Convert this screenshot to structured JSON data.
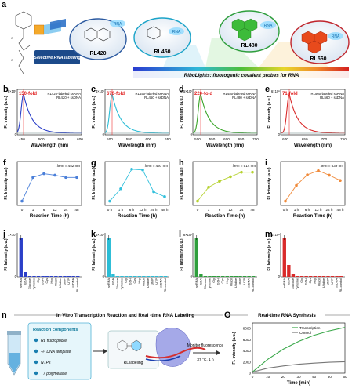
{
  "figure": {
    "panel_letters": [
      "a",
      "b",
      "c",
      "d",
      "e",
      "f",
      "g",
      "h",
      "i",
      "j",
      "k",
      "l",
      "m",
      "n",
      "O"
    ],
    "a": {
      "selective_label": "Selective RNA labeling",
      "probes": [
        {
          "name": "RL420",
          "color": "#2c5aa0"
        },
        {
          "name": "RL450",
          "color": "#1aa3c8"
        },
        {
          "name": "RL480",
          "color": "#2e9e3c"
        },
        {
          "name": "RL560",
          "color": "#c0262d"
        }
      ],
      "rna_tag": "RNA",
      "banner": "RiboLights: fluorogenic covalent probes for RNA"
    },
    "row_b_e": {
      "ylabel": "Fl. Intensity (a.u.)",
      "xlabel": "Wavelength (nm)",
      "panels": [
        {
          "id": "b",
          "fold": "150-fold",
          "color": "#2b3fc8",
          "legend": [
            "RL420-labeled ssRNA",
            "RL420 + ssDNA"
          ],
          "y_max_label": "8×10⁵",
          "x_ticks": [
            "450",
            "500",
            "550",
            "600"
          ],
          "peak": 451
        },
        {
          "id": "c",
          "fold": "670-fold",
          "color": "#2bbdd6",
          "legend": [
            "RL450-labeled ssRNA",
            "RL450 + ssDNA"
          ],
          "y_max_label": "4×10⁶",
          "x_ticks": [
            "500",
            "550",
            "600",
            "650"
          ],
          "peak": 495
        },
        {
          "id": "d",
          "fold": "220-fold",
          "color": "#3ba52a",
          "legend": [
            "RL480-labeled ssRNA",
            "RL480 + ssDNA"
          ],
          "y_max_label": "2.5×10⁶",
          "x_ticks": [
            "500",
            "550",
            "600",
            "650",
            "700"
          ],
          "peak": 513
        },
        {
          "id": "e",
          "fold": "71-fold",
          "color": "#d92a2a",
          "legend": [
            "RL560-labeled ssRNA",
            "RL560 + ssDNA"
          ],
          "y_max_label": "6×10⁶",
          "x_ticks": [
            "600",
            "650",
            "700",
            "750"
          ],
          "peak": 640
        }
      ]
    },
    "row_f_i": {
      "ylabel": "Fl. Intensity (a.u.)",
      "xlabel": "Reaction Time (h)",
      "panels": [
        {
          "id": "f",
          "em": "λem = 452 nm",
          "color": "#4a7fd9",
          "x": [
            "0",
            "1",
            "6",
            "12",
            "24",
            "48"
          ],
          "values": [
            0.05,
            0.68,
            0.78,
            0.74,
            0.68,
            0.68
          ]
        },
        {
          "id": "g",
          "em": "λem = 497 nm",
          "color": "#33c0dc",
          "x": [
            "0 h",
            "1 h",
            "6 h",
            "12 h",
            "24 h",
            "48 h"
          ],
          "values": [
            0.05,
            0.38,
            0.9,
            0.88,
            0.3,
            0.17
          ]
        },
        {
          "id": "h",
          "em": "λem = 514 nm",
          "color": "#b6d230",
          "x": [
            "0",
            "1",
            "6",
            "12",
            "24",
            "48"
          ],
          "values": [
            0.05,
            0.42,
            0.58,
            0.7,
            0.82,
            0.82
          ]
        },
        {
          "id": "i",
          "em": "λem = 539 nm",
          "color": "#f08a3a",
          "x": [
            "0 h",
            "1 h",
            "6 h",
            "12 h",
            "24 h",
            "48 h"
          ],
          "values": [
            0.05,
            0.47,
            0.75,
            0.86,
            0.74,
            0.6
          ]
        }
      ]
    },
    "row_j_m": {
      "ylabel": "Fl. Intensity (a.u.)",
      "categories": [
        "ssRNA",
        "BSA",
        "Glucose",
        "Tyrosine",
        "Gly",
        "GSH",
        "Cys",
        "Hcy",
        "Uracil",
        "Uridine",
        "UMP",
        "UTP",
        "ssDNA",
        "RL-control"
      ],
      "panels": [
        {
          "id": "j",
          "color": "#2b3fc8",
          "values": [
            1.0,
            0.12,
            0.02,
            0.02,
            0.02,
            0.02,
            0.02,
            0.02,
            0.02,
            0.02,
            0.02,
            0.02,
            0.02,
            0.02
          ],
          "y_label": "1×10⁷"
        },
        {
          "id": "k",
          "color": "#2bbdd6",
          "values": [
            1.0,
            0.08,
            0.02,
            0.02,
            0.02,
            0.02,
            0.02,
            0.02,
            0.02,
            0.02,
            0.02,
            0.02,
            0.02,
            0.02
          ],
          "y_label": "4×10⁶"
        },
        {
          "id": "l",
          "color": "#2e9e3c",
          "values": [
            1.0,
            0.06,
            0.02,
            0.02,
            0.02,
            0.02,
            0.02,
            0.02,
            0.02,
            0.02,
            0.02,
            0.02,
            0.02,
            0.02
          ],
          "y_label": "8×10⁵"
        },
        {
          "id": "m",
          "color": "#d92a2a",
          "values": [
            1.0,
            0.3,
            0.06,
            0.02,
            0.02,
            0.02,
            0.02,
            0.02,
            0.02,
            0.02,
            0.02,
            0.02,
            0.02,
            0.02
          ],
          "y_label": "1×10⁶"
        }
      ]
    },
    "n": {
      "title": "In Vitro Transcription Reaction and Real -time RNA Labeling",
      "box_title": "Reaction components",
      "components": [
        "RL fluorophore",
        "+/- DNA template",
        "NTPs",
        "T7 polymerase"
      ],
      "rl_label": "RL labeling",
      "monitor": "Monitor fluorescence",
      "condition": "37 °C, 1 h"
    },
    "o": {
      "title": "Real-time RNA Synthesis",
      "legend": [
        "Transcription",
        "Control"
      ],
      "ylabel": "Fl. Intensity (a.u.)",
      "xlabel": "Time (min)",
      "x_ticks": [
        "0",
        "10",
        "20",
        "30",
        "40",
        "50",
        "60"
      ],
      "y_ticks": [
        "0",
        "2000",
        "4000",
        "6000",
        "8000"
      ]
    }
  },
  "chart_data": [
    {
      "type": "line",
      "title": "",
      "xlabel": "Reaction Time (h)",
      "ylabel": "Fl. Intensity (a.u.)",
      "categories": [
        "0",
        "1",
        "6",
        "12",
        "24",
        "48"
      ],
      "series": [
        {
          "name": "λem = 452 nm",
          "values": [
            0.05,
            0.68,
            0.78,
            0.74,
            0.68,
            0.68
          ]
        }
      ]
    },
    {
      "type": "line",
      "title": "",
      "xlabel": "Reaction Time (h)",
      "ylabel": "Fl. Intensity (a.u.)",
      "categories": [
        "0 h",
        "1 h",
        "6 h",
        "12 h",
        "24 h",
        "48 h"
      ],
      "series": [
        {
          "name": "λem = 497 nm",
          "values": [
            0.05,
            0.38,
            0.9,
            0.88,
            0.3,
            0.17
          ]
        }
      ]
    },
    {
      "type": "line",
      "title": "",
      "xlabel": "Reaction Time (h)",
      "ylabel": "Fl. Intensity (a.u.)",
      "categories": [
        "0",
        "1",
        "6",
        "12",
        "24",
        "48"
      ],
      "series": [
        {
          "name": "λem = 514 nm",
          "values": [
            0.05,
            0.42,
            0.58,
            0.7,
            0.82,
            0.82
          ]
        }
      ]
    },
    {
      "type": "line",
      "title": "",
      "xlabel": "Reaction Time (h)",
      "ylabel": "Fl. Intensity (a.u.)",
      "categories": [
        "0 h",
        "1 h",
        "6 h",
        "12 h",
        "24 h",
        "48 h"
      ],
      "series": [
        {
          "name": "λem = 539 nm",
          "values": [
            0.05,
            0.47,
            0.75,
            0.86,
            0.74,
            0.6
          ]
        }
      ]
    },
    {
      "type": "line",
      "title": "Real-time RNA Synthesis",
      "xlabel": "Time (min)",
      "ylabel": "Fl. Intensity (a.u.)",
      "x": [
        0,
        10,
        20,
        30,
        40,
        50,
        60
      ],
      "series": [
        {
          "name": "Transcription",
          "values": [
            200,
            2500,
            4300,
            5700,
            6800,
            7600,
            8200
          ]
        },
        {
          "name": "Control",
          "values": [
            200,
            900,
            1300,
            1600,
            1800,
            1950,
            2050
          ]
        }
      ],
      "ylim": [
        0,
        9000
      ]
    }
  ]
}
